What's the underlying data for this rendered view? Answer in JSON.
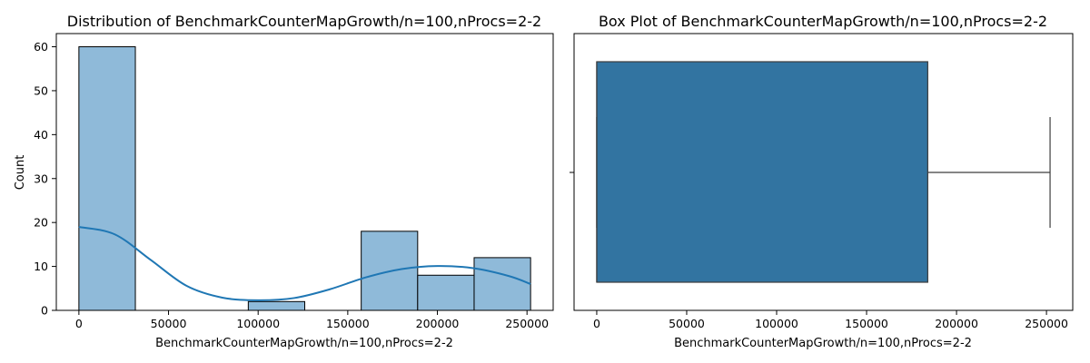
{
  "chart_data": [
    {
      "type": "histogram",
      "title": "Distribution of BenchmarkCounterMapGrowth/n=100,nProcs=2-2",
      "xlabel": "BenchmarkCounterMapGrowth/n=100,nProcs=2-2",
      "ylabel": "Count",
      "xlim": [
        -12600,
        264600
      ],
      "ylim": [
        0,
        63
      ],
      "xticks": [
        0,
        50000,
        100000,
        150000,
        200000,
        250000
      ],
      "yticks": [
        0,
        10,
        20,
        30,
        40,
        50,
        60
      ],
      "bins": [
        {
          "start": 0,
          "end": 31500,
          "count": 60
        },
        {
          "start": 31500,
          "end": 63000,
          "count": 0
        },
        {
          "start": 63000,
          "end": 94500,
          "count": 0
        },
        {
          "start": 94500,
          "end": 126000,
          "count": 2
        },
        {
          "start": 126000,
          "end": 157500,
          "count": 0
        },
        {
          "start": 157500,
          "end": 189000,
          "count": 18
        },
        {
          "start": 189000,
          "end": 220500,
          "count": 8
        },
        {
          "start": 220500,
          "end": 252000,
          "count": 12
        }
      ],
      "kde": {
        "x": [
          0,
          20000,
          40000,
          60000,
          80000,
          100000,
          120000,
          140000,
          160000,
          180000,
          200000,
          220000,
          240000,
          252000
        ],
        "y": [
          19,
          17.3,
          11.5,
          5.6,
          2.9,
          2.3,
          2.8,
          4.8,
          7.5,
          9.4,
          10.1,
          9.6,
          7.8,
          6
        ]
      },
      "colors": {
        "bar": "#8fbad9",
        "edge": "#000000",
        "kde": "#1f77b4"
      }
    },
    {
      "type": "box",
      "title": "Box Plot of BenchmarkCounterMapGrowth/n=100,nProcs=2-2",
      "xlabel": "BenchmarkCounterMapGrowth/n=100,nProcs=2-2",
      "xlim": [
        -12600,
        264600
      ],
      "xticks": [
        0,
        50000,
        100000,
        150000,
        200000,
        250000
      ],
      "box": {
        "min": 0,
        "q1": 0,
        "median": 0,
        "q3": 184000,
        "max": 252000
      },
      "colors": {
        "box": "#3274a1",
        "line": "#3d3d3d"
      }
    }
  ]
}
